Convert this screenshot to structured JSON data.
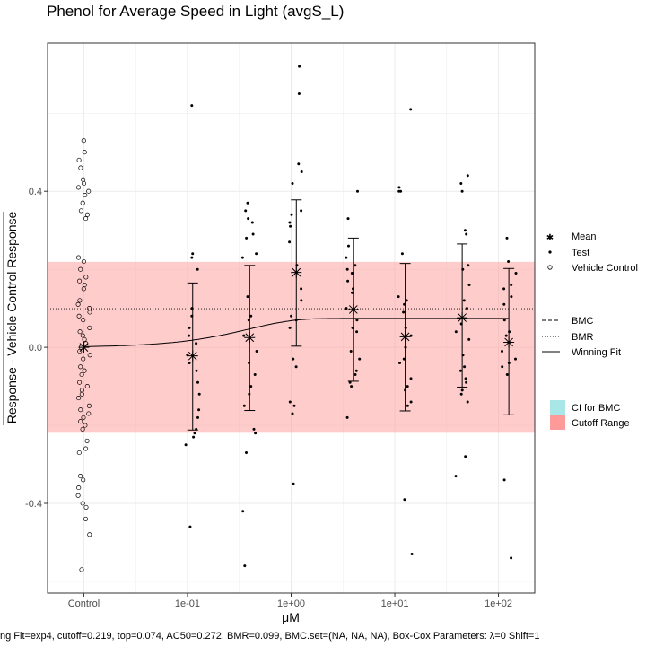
{
  "chart_data": {
    "type": "scatter",
    "title": "Phenol for Average Speed in Light (avgS_L)",
    "xlabel": "μM",
    "ylabel": "Response - Vehicle Control Response",
    "caption": "ng Fit=exp4, cutoff=0.219, top=0.074, AC50=0.272, BMR=0.099, BMC.set=(NA, NA, NA), Box-Cox Parameters: λ=0 Shift=1",
    "x_ticks": [
      "Control",
      "1e-01",
      "1e+00",
      "1e+01",
      "1e+02"
    ],
    "y_ticks": [
      "0.4",
      "0.0",
      "-0.4"
    ],
    "y_tick_values": [
      0.4,
      0.0,
      -0.4
    ],
    "ylim": [
      -0.63,
      0.78
    ],
    "log10_xlim": [
      -2.35,
      2.35
    ],
    "control_log10_x": -2.0,
    "cutoff": 0.219,
    "bmr": 0.099,
    "fit": {
      "model": "exp4",
      "top": 0.074,
      "ac50": 0.272
    },
    "control_points": [
      0.53,
      0.5,
      0.48,
      0.46,
      0.43,
      0.42,
      0.41,
      0.4,
      0.39,
      0.37,
      0.35,
      0.34,
      0.33,
      0.23,
      0.22,
      0.2,
      0.18,
      0.17,
      0.16,
      0.15,
      0.12,
      0.11,
      0.1,
      0.09,
      0.08,
      0.07,
      0.05,
      0.04,
      0.03,
      0.02,
      0.01,
      0.0,
      -0.01,
      -0.02,
      -0.03,
      -0.05,
      -0.06,
      -0.07,
      -0.09,
      -0.1,
      -0.11,
      -0.12,
      -0.13,
      -0.15,
      -0.16,
      -0.17,
      -0.18,
      -0.19,
      -0.2,
      -0.21,
      -0.24,
      -0.26,
      -0.27,
      -0.33,
      -0.34,
      -0.36,
      -0.38,
      -0.4,
      -0.41,
      -0.44,
      -0.48,
      -0.57
    ],
    "groups": [
      {
        "log10_conc": -0.95,
        "mean": -0.022,
        "upper": 0.165,
        "lower": -0.212,
        "points": [
          0.62,
          0.24,
          0.23,
          0.2,
          0.1,
          0.08,
          0.05,
          0.03,
          0.01,
          -0.02,
          -0.04,
          -0.06,
          -0.09,
          -0.12,
          -0.16,
          -0.18,
          -0.21,
          -0.22,
          -0.23,
          -0.25,
          -0.46
        ]
      },
      {
        "log10_conc": -0.4,
        "mean": 0.025,
        "upper": 0.21,
        "lower": -0.162,
        "points": [
          0.37,
          0.35,
          0.33,
          0.32,
          0.29,
          0.28,
          0.24,
          0.23,
          0.13,
          0.08,
          0.07,
          0.03,
          -0.01,
          -0.04,
          -0.07,
          -0.1,
          -0.12,
          -0.15,
          -0.21,
          -0.22,
          -0.27,
          -0.42,
          -0.56
        ]
      },
      {
        "log10_conc": 0.05,
        "mean": 0.192,
        "upper": 0.378,
        "lower": 0.003,
        "points": [
          0.72,
          0.65,
          0.47,
          0.45,
          0.42,
          0.35,
          0.34,
          0.32,
          0.31,
          0.27,
          0.21,
          0.15,
          0.12,
          0.08,
          0.07,
          0.05,
          -0.03,
          -0.05,
          -0.14,
          -0.15,
          -0.17,
          -0.35
        ]
      },
      {
        "log10_conc": 0.6,
        "mean": 0.097,
        "upper": 0.28,
        "lower": -0.087,
        "points": [
          0.4,
          0.33,
          0.26,
          0.23,
          0.21,
          0.2,
          0.19,
          0.17,
          0.15,
          0.14,
          0.1,
          0.07,
          0.05,
          0.04,
          -0.01,
          -0.03,
          -0.06,
          -0.07,
          -0.09,
          -0.1,
          -0.18
        ]
      },
      {
        "log10_conc": 1.1,
        "mean": 0.027,
        "upper": 0.215,
        "lower": -0.163,
        "points": [
          0.61,
          0.41,
          0.4,
          0.4,
          0.24,
          0.13,
          0.12,
          0.11,
          0.09,
          0.05,
          0.03,
          0.0,
          -0.03,
          -0.04,
          -0.08,
          -0.1,
          -0.11,
          -0.14,
          -0.15,
          -0.39,
          -0.53
        ]
      },
      {
        "log10_conc": 1.65,
        "mean": 0.076,
        "upper": 0.265,
        "lower": -0.102,
        "points": [
          0.44,
          0.42,
          0.4,
          0.3,
          0.29,
          0.21,
          0.2,
          0.16,
          0.12,
          0.1,
          0.06,
          0.04,
          0.02,
          -0.02,
          -0.05,
          -0.06,
          -0.08,
          -0.09,
          -0.11,
          -0.12,
          -0.14,
          -0.28,
          -0.33
        ]
      },
      {
        "log10_conc": 2.1,
        "mean": 0.013,
        "upper": 0.202,
        "lower": -0.173,
        "points": [
          0.28,
          0.22,
          0.19,
          0.16,
          0.15,
          0.13,
          0.11,
          0.07,
          0.04,
          0.03,
          -0.01,
          -0.03,
          -0.04,
          -0.05,
          -0.07,
          -0.34,
          -0.54
        ]
      }
    ],
    "legend": {
      "points": [
        "Mean",
        "Test",
        "Vehicle Control"
      ],
      "lines": [
        "BMC",
        "BMR",
        "Winning Fit"
      ],
      "fills": [
        "CI for BMC",
        "Cutoff Range"
      ]
    },
    "colors": {
      "cutoff_fill": "#ff9a9a",
      "ci_fill": "#a8e6e8",
      "axis": "#333333",
      "grid": "#ebebeb"
    }
  }
}
